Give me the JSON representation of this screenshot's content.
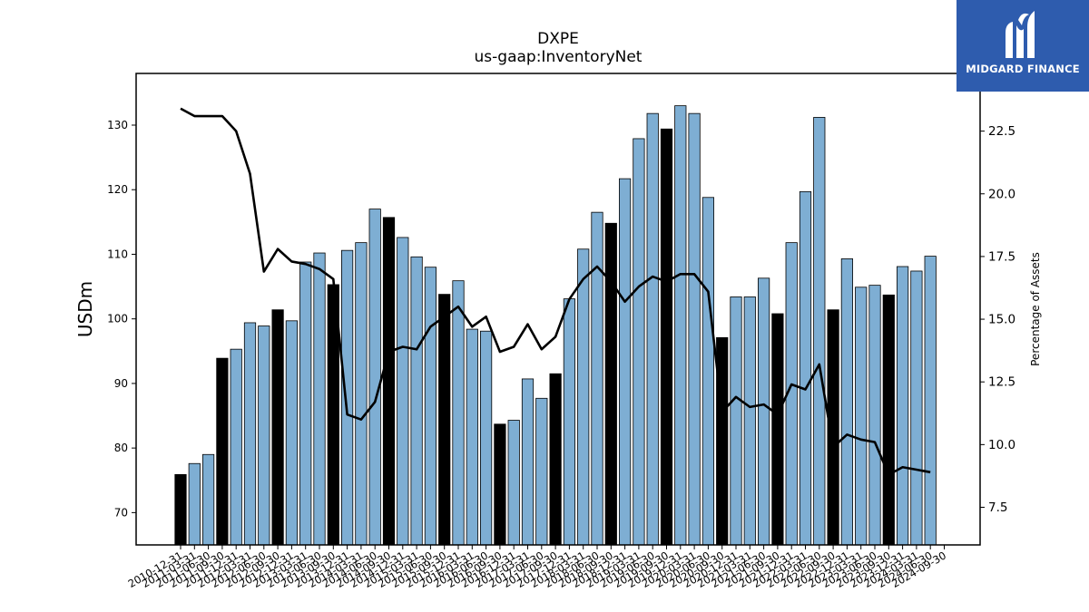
{
  "brand": {
    "name": "MIDGARD FINANCE",
    "bg_color": "#2e5cae",
    "icon": "midgard-logo-icon"
  },
  "chart_data": {
    "type": "bar",
    "title": "DXPE",
    "subtitle": "us-gaap:InventoryNet",
    "ylabel_left": "USDm",
    "ylabel_right": "Percentage of Assets",
    "ylim_left": [
      65,
      138
    ],
    "ylim_right": [
      6.0,
      24.8
    ],
    "yticks_left": [
      70,
      80,
      90,
      100,
      110,
      120,
      130
    ],
    "yticks_right": [
      7.5,
      10.0,
      12.5,
      15.0,
      17.5,
      20.0,
      22.5
    ],
    "bar_color": "#7eaed3",
    "highlight_color": "#000000",
    "line_color": "#000000",
    "grid": false,
    "categories": [
      "2010-12-31",
      "2011-03-31",
      "2011-06-30",
      "2011-09-30",
      "2011-12-31",
      "2012-03-31",
      "2012-06-30",
      "2012-09-30",
      "2012-12-31",
      "2013-03-31",
      "2013-06-30",
      "2013-09-30",
      "2013-12-31",
      "2014-03-31",
      "2014-06-30",
      "2014-09-30",
      "2014-12-31",
      "2015-03-31",
      "2015-06-30",
      "2015-09-30",
      "2015-12-31",
      "2016-03-31",
      "2016-06-30",
      "2016-09-30",
      "2016-12-31",
      "2017-03-31",
      "2017-06-30",
      "2017-09-30",
      "2017-12-31",
      "2018-03-31",
      "2018-06-30",
      "2018-09-30",
      "2018-12-31",
      "2019-03-31",
      "2019-06-30",
      "2019-09-30",
      "2019-12-31",
      "2020-03-31",
      "2020-06-30",
      "2020-09-30",
      "2020-12-31",
      "2021-03-31",
      "2021-06-30",
      "2021-09-30",
      "2021-12-31",
      "2022-03-31",
      "2022-06-30",
      "2022-09-30",
      "2022-12-31",
      "2023-03-31",
      "2023-06-30",
      "2023-09-30",
      "2023-12-31",
      "2024-03-31",
      "2024-06-30",
      "2024-09-30"
    ],
    "series": [
      {
        "type": "bar",
        "axis": "left",
        "values": [
          75.9,
          77.6,
          79.0,
          93.9,
          95.3,
          99.4,
          98.9,
          101.4,
          99.7,
          108.8,
          110.2,
          105.3,
          110.6,
          111.8,
          117.0,
          115.7,
          112.6,
          109.6,
          108.0,
          103.8,
          105.9,
          98.4,
          98.1,
          83.7,
          84.3,
          90.7,
          87.7,
          91.5,
          103.1,
          110.8,
          116.5,
          114.8,
          121.7,
          127.9,
          131.8,
          129.4,
          133.0,
          131.8,
          118.8,
          97.1,
          103.4,
          103.4,
          106.3,
          100.8,
          111.8,
          119.7,
          131.2,
          101.4,
          109.3,
          104.9,
          105.2,
          103.7,
          108.1,
          107.4,
          109.7,
          null
        ],
        "highlight": [
          true,
          false,
          false,
          true,
          false,
          false,
          false,
          true,
          false,
          false,
          false,
          true,
          false,
          false,
          false,
          true,
          false,
          false,
          false,
          true,
          false,
          false,
          false,
          true,
          false,
          false,
          false,
          true,
          false,
          false,
          false,
          true,
          false,
          false,
          false,
          true,
          false,
          false,
          false,
          true,
          false,
          false,
          false,
          true,
          false,
          false,
          false,
          true,
          false,
          false,
          false,
          true,
          false,
          false,
          false,
          false
        ]
      },
      {
        "type": "line",
        "axis": "right",
        "values": [
          23.4,
          23.1,
          23.1,
          23.1,
          22.5,
          20.8,
          16.9,
          17.8,
          17.3,
          17.2,
          17.0,
          16.6,
          11.2,
          11.0,
          11.7,
          13.7,
          13.9,
          13.8,
          14.7,
          15.1,
          15.5,
          14.7,
          15.1,
          13.7,
          13.9,
          14.8,
          13.8,
          14.3,
          15.8,
          16.6,
          17.1,
          16.5,
          15.7,
          16.3,
          16.7,
          16.5,
          16.8,
          16.8,
          16.1,
          11.3,
          11.9,
          11.5,
          11.6,
          11.2,
          12.4,
          12.2,
          13.2,
          9.9,
          10.4,
          10.2,
          10.1,
          8.8,
          9.1,
          9.0,
          8.9,
          null
        ]
      }
    ]
  }
}
